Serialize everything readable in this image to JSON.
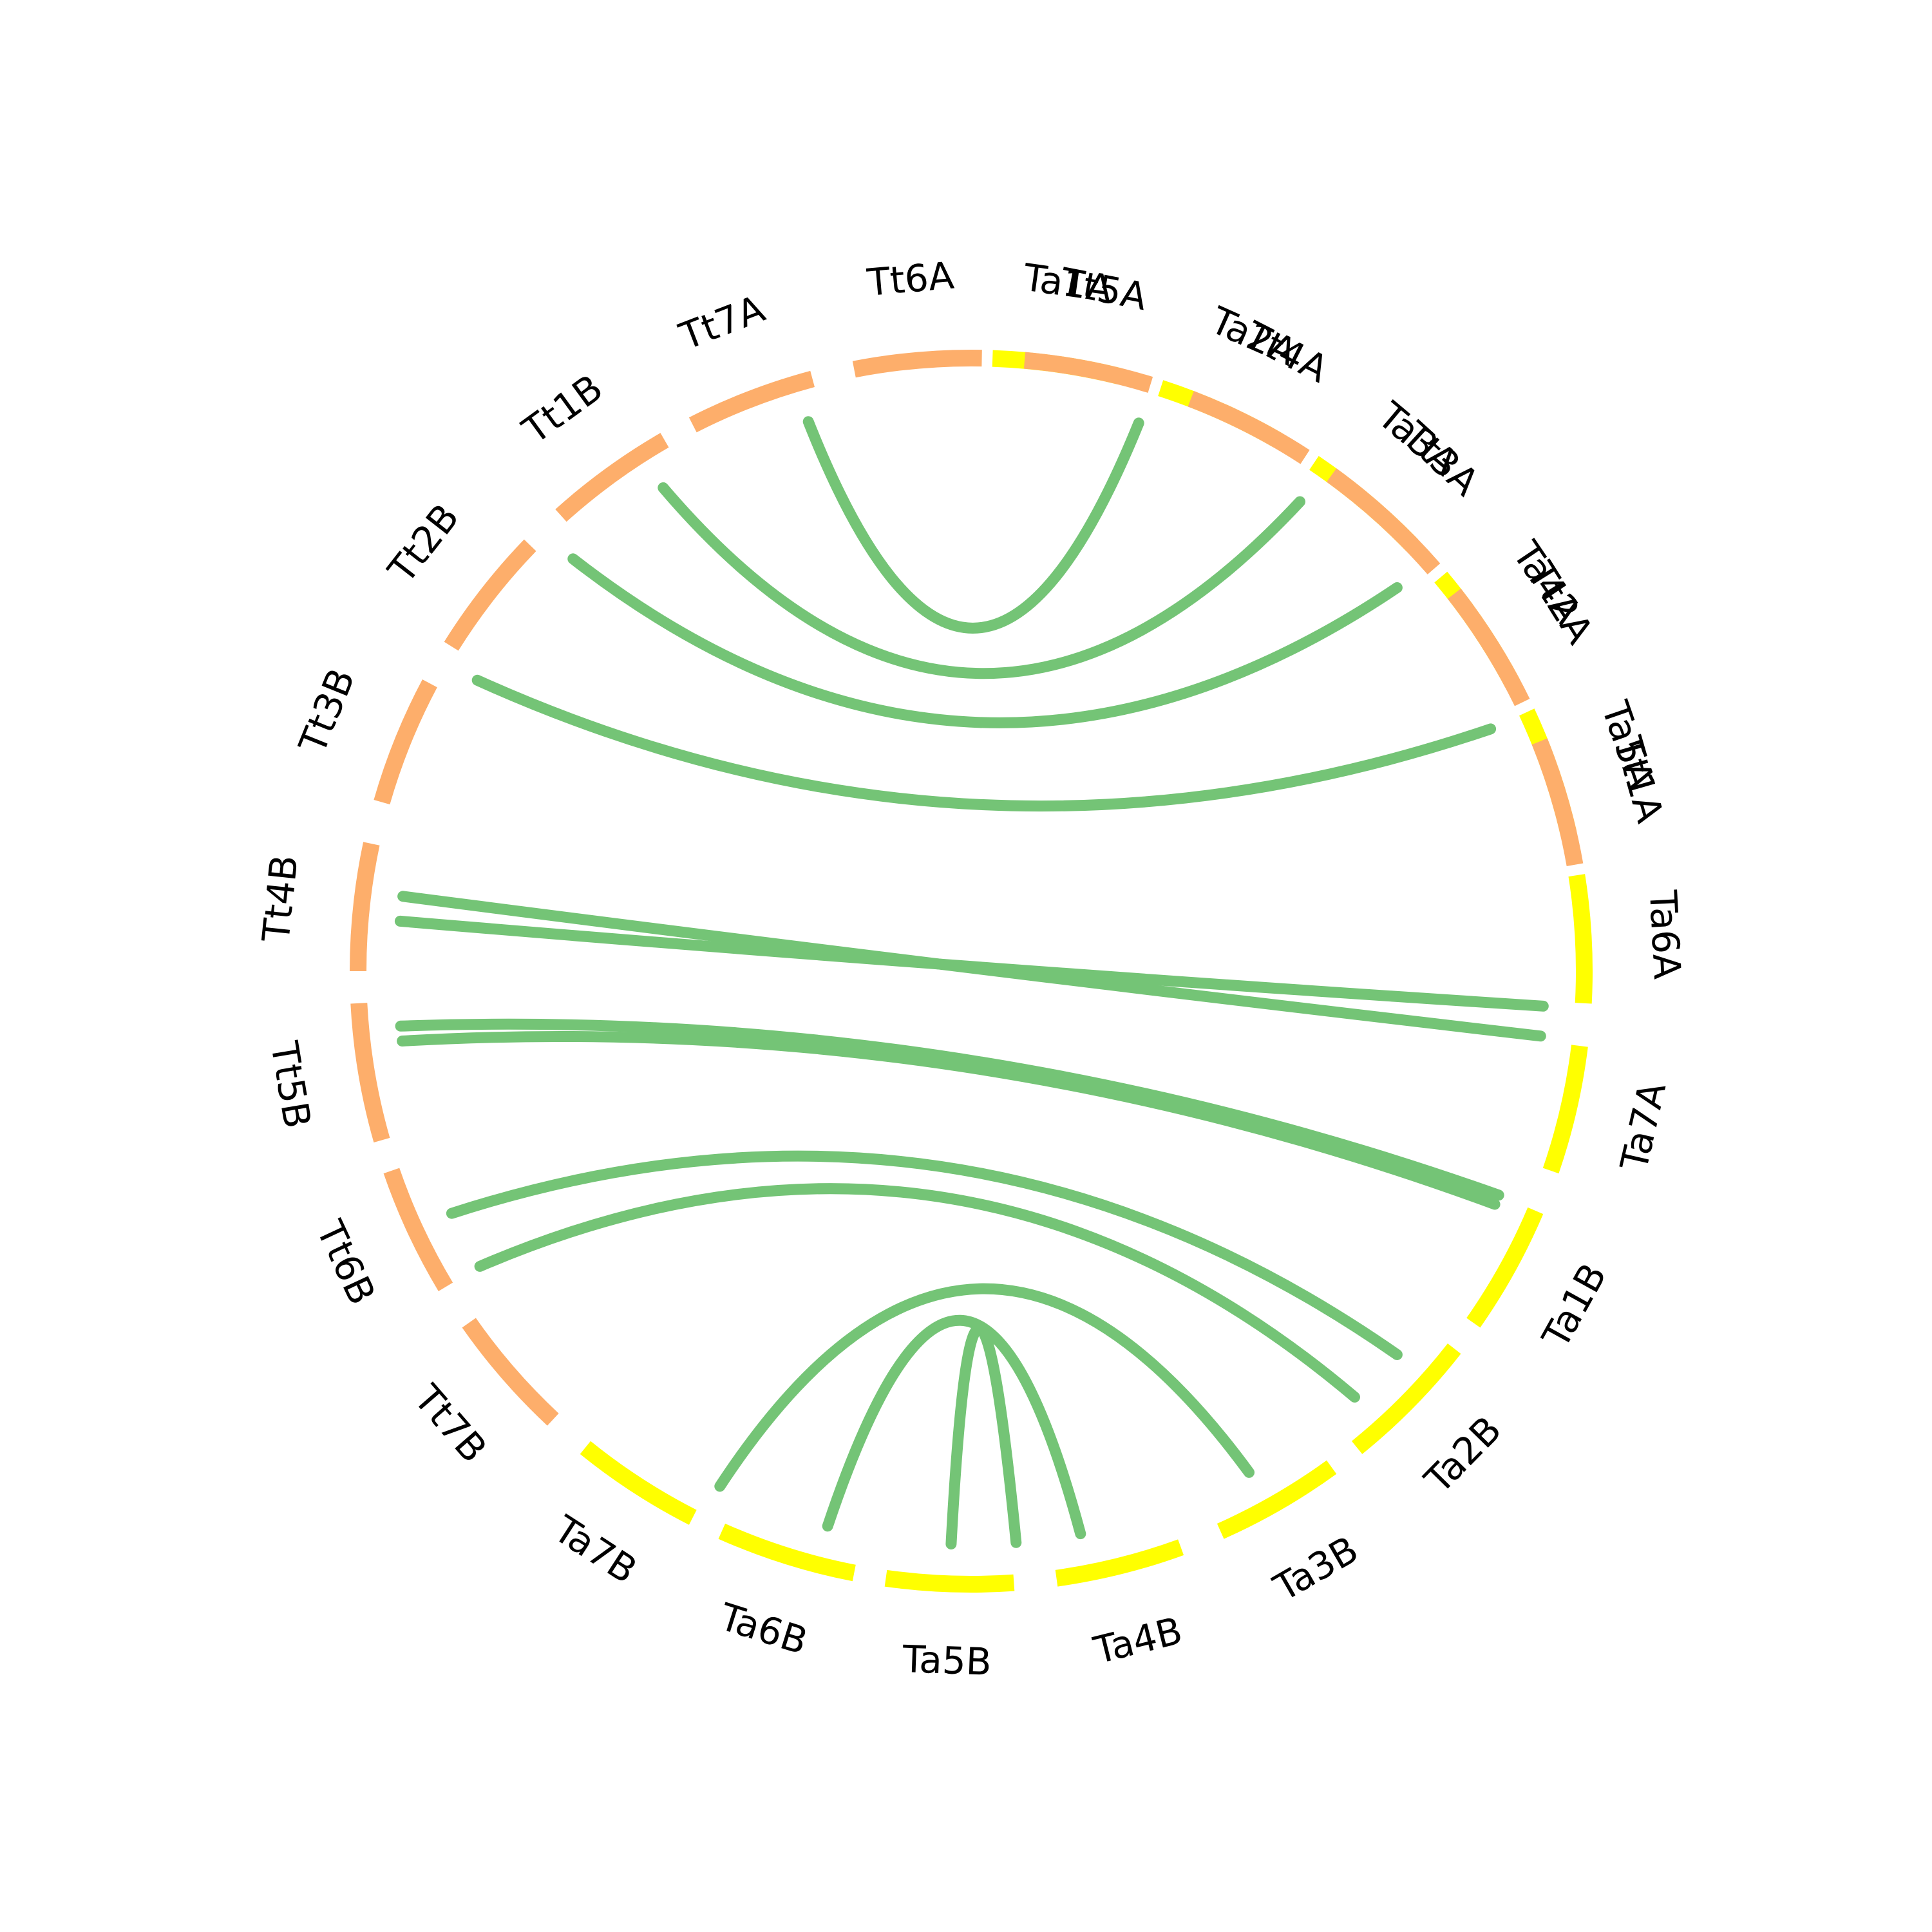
{
  "diagram": {
    "type": "circos-chord",
    "colors": {
      "Tt_segments": "#FDAE6B",
      "Ta_segments": "#FFFF00",
      "links": "#74C476",
      "labels": "#000000"
    },
    "segments": [
      {
        "label": "Ta1A",
        "group": "Ta",
        "start_angle": 2,
        "end_angle": 14
      },
      {
        "label": "Ta2A",
        "group": "Ta",
        "start_angle": 18,
        "end_angle": 30
      },
      {
        "label": "Ta3A",
        "group": "Ta",
        "start_angle": 34,
        "end_angle": 46
      },
      {
        "label": "Ta4A",
        "group": "Ta",
        "start_angle": 50,
        "end_angle": 62
      },
      {
        "label": "Ta5A",
        "group": "Ta",
        "start_angle": 65,
        "end_angle": 77
      },
      {
        "label": "Ta6A",
        "group": "Ta",
        "start_angle": 81,
        "end_angle": 93
      },
      {
        "label": "Ta7A",
        "group": "Ta",
        "start_angle": 97,
        "end_angle": 109
      },
      {
        "label": "Ta1B",
        "group": "Ta",
        "start_angle": 113,
        "end_angle": 125
      },
      {
        "label": "Ta2B",
        "group": "Ta",
        "start_angle": 128,
        "end_angle": 141
      },
      {
        "label": "Ta3B",
        "group": "Ta",
        "start_angle": 144,
        "end_angle": 156
      },
      {
        "label": "Ta4B",
        "group": "Ta",
        "start_angle": 160,
        "end_angle": 172
      },
      {
        "label": "Ta5B",
        "group": "Ta",
        "start_angle": 176,
        "end_angle": 188
      },
      {
        "label": "Ta6B",
        "group": "Ta",
        "start_angle": 191,
        "end_angle": 204
      },
      {
        "label": "Ta7B",
        "group": "Ta",
        "start_angle": 207,
        "end_angle": 219
      },
      {
        "label": "Tt7B",
        "group": "Tt",
        "start_angle": 223,
        "end_angle": 235
      },
      {
        "label": "Tt6B",
        "group": "Tt",
        "start_angle": 239,
        "end_angle": 251
      },
      {
        "label": "Tt5B",
        "group": "Tt",
        "start_angle": 254,
        "end_angle": 267
      },
      {
        "label": "Tt4B",
        "group": "Tt",
        "start_angle": 270,
        "end_angle": 282
      },
      {
        "label": "Tt3B",
        "group": "Tt",
        "start_angle": 286,
        "end_angle": 298
      },
      {
        "label": "Tt2B",
        "group": "Tt",
        "start_angle": 302,
        "end_angle": 314
      },
      {
        "label": "Tt1B",
        "group": "Tt",
        "start_angle": 318,
        "end_angle": 330
      },
      {
        "label": "Tt7A",
        "group": "Tt",
        "start_angle": 333,
        "end_angle": 345
      },
      {
        "label": "Tt6A",
        "group": "Tt",
        "start_angle": 349,
        "end_angle": 361
      },
      {
        "label": "Tt5A",
        "group": "Tt",
        "start_angle": 365,
        "end_angle": 377
      },
      {
        "label": "Tt4A",
        "group": "Tt",
        "start_angle": 381,
        "end_angle": 393
      },
      {
        "label": "Tt3A",
        "group": "Tt",
        "start_angle": 396,
        "end_angle": 409
      },
      {
        "label": "Tt2A",
        "group": "Tt",
        "start_angle": 412,
        "end_angle": 424
      },
      {
        "label": "Tt1A",
        "group": "Tt",
        "start_angle": 428,
        "end_angle": 440
      }
    ],
    "links": [
      {
        "from": "Tt2A",
        "to": "Ta2A",
        "from_angle": 343.5,
        "to_angle": 17.0
      },
      {
        "from": "Tt3A",
        "to": "Ta3A",
        "from_angle": 327.5,
        "to_angle": 35.0
      },
      {
        "from": "Tt4A",
        "to": "Ta4A",
        "from_angle": 316.0,
        "to_angle": 48.0
      },
      {
        "from": "Tt6A",
        "to": "Ta5A",
        "from_angle": 300.5,
        "to_angle": 65.0
      },
      {
        "from": "Tt7A",
        "to": "Ta7A",
        "from_angle": 277.5,
        "to_angle": 96.5
      },
      {
        "from": "Tt7A",
        "to": "Ta7A",
        "from_angle": 275.0,
        "to_angle": 93.5
      },
      {
        "from": "Tt2B",
        "to": "Ta2B",
        "from_angle": 264.5,
        "to_angle": 113.0
      },
      {
        "from": "Tt2B",
        "to": "Ta2B",
        "from_angle": 263.0,
        "to_angle": 114.0
      },
      {
        "from": "Tt3B",
        "to": "Ta3B",
        "from_angle": 239.0,
        "to_angle": 138.0
      },
      {
        "from": "Tt3B",
        "to": "Ta3B",
        "from_angle": 245.0,
        "to_angle": 132.0
      },
      {
        "from": "Tt5B",
        "to": "Ta5B",
        "from_angle": 206.0,
        "to_angle": 151.0
      },
      {
        "from": "Tt6B",
        "to": "Ta6B",
        "from_angle": 194.5,
        "to_angle": 169.0
      },
      {
        "from": "Tt7B",
        "to": "Ta7B",
        "from_angle": 182.0,
        "to_angle": 175.5
      }
    ]
  }
}
